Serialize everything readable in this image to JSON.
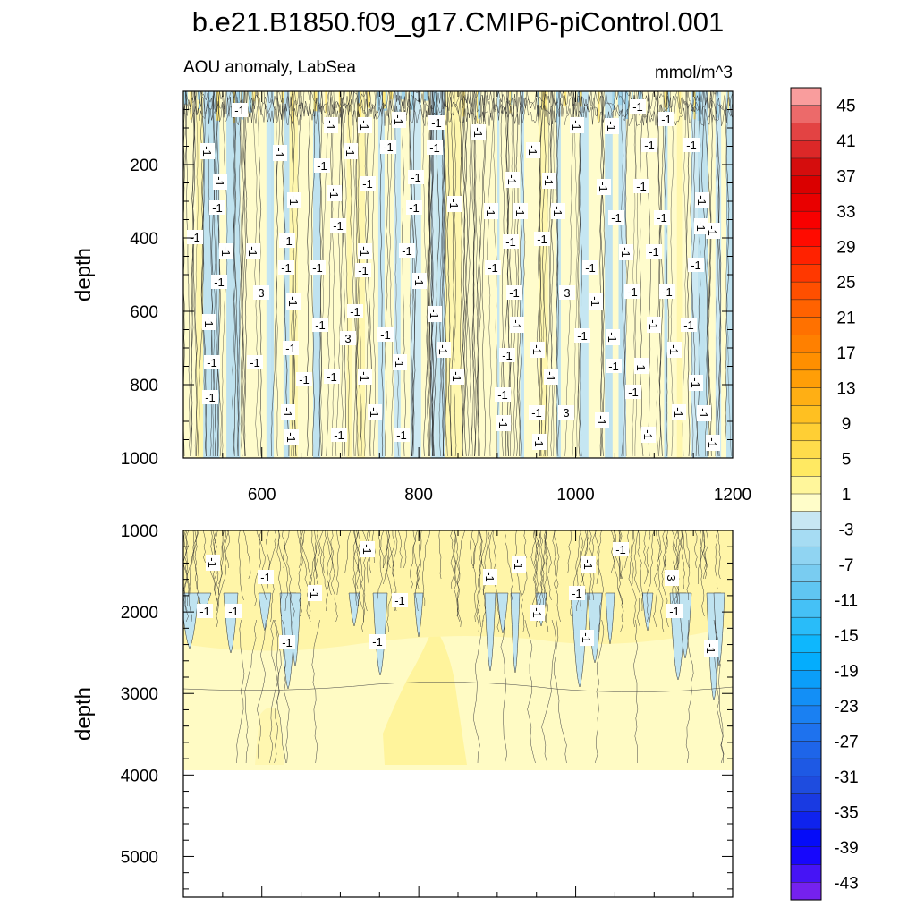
{
  "chart_data": {
    "type": "heatmap",
    "title": "b.e21.B1850.f09_g17.CMIP6-piControl.001",
    "subtitle_left": "AOU anomaly, LabSea",
    "units": "mmol/m^3",
    "xlabel": "",
    "ylabel": "depth",
    "x_range": [
      500,
      1200
    ],
    "x_ticks": [
      "600",
      "800",
      "1000",
      "1200"
    ],
    "panels": [
      {
        "name": "upper",
        "depth_range": [
          0,
          1000
        ],
        "y_ticks": [
          "200",
          "400",
          "600",
          "800",
          "1000"
        ],
        "contour_labels": [
          "-1",
          "3"
        ]
      },
      {
        "name": "lower",
        "depth_range": [
          1000,
          5500
        ],
        "data_max_depth": 3875,
        "y_ticks": [
          "1000",
          "2000",
          "3000",
          "4000",
          "5000"
        ],
        "contour_labels": [
          "-1",
          "3"
        ]
      }
    ],
    "colorbar": {
      "levels_min": -45,
      "levels_max": 47,
      "interval": 2,
      "tick_labels": [
        "45",
        "41",
        "37",
        "33",
        "29",
        "25",
        "21",
        "17",
        "13",
        "9",
        "5",
        "1",
        "-3",
        "-7",
        "-11",
        "-15",
        "-19",
        "-23",
        "-27",
        "-31",
        "-35",
        "-39",
        "-43"
      ]
    }
  }
}
